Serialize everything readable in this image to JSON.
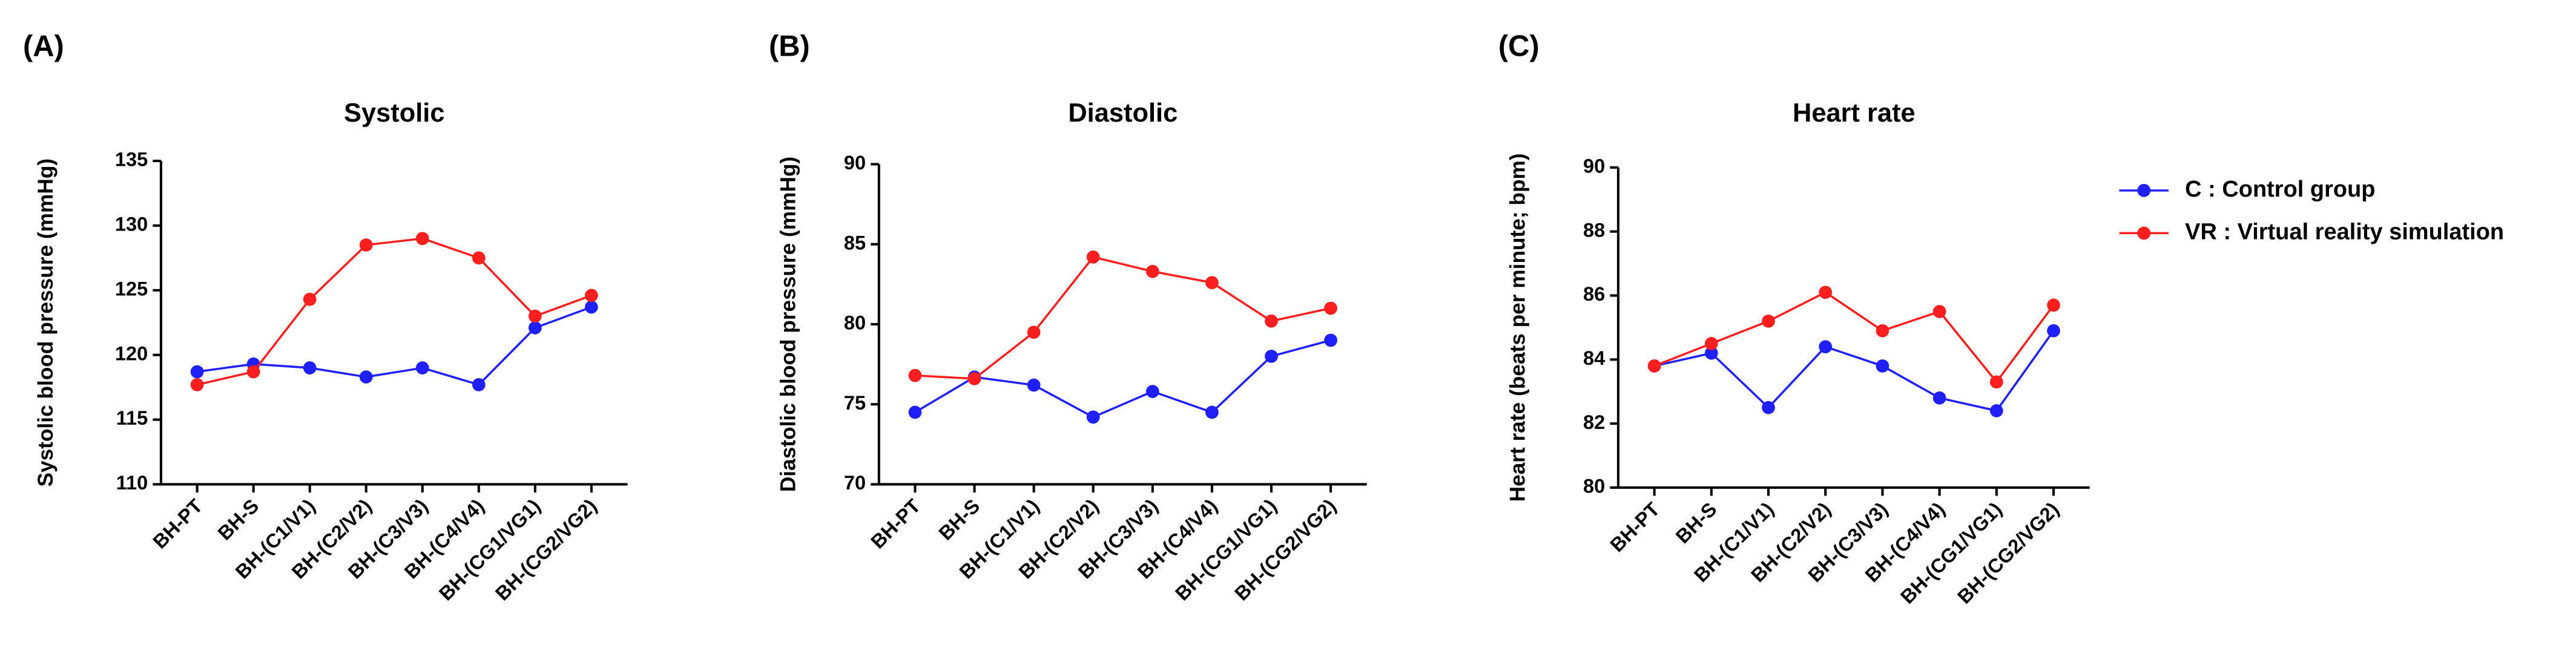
{
  "chart_data": [
    {
      "type": "line",
      "panel": "(A)",
      "title": "Systolic",
      "y_label": "Systolic blood pressure (mmHg)",
      "categories": [
        "BH-PT",
        "BH-S",
        "BH-(C1/V1)",
        "BH-(C2/V2)",
        "BH-(C3/V3)",
        "BH-(C4/V4)",
        "BH-(CG1/VG1)",
        "BH-(CG2/VG2)"
      ],
      "series": [
        {
          "color": "#1f1fff",
          "values": [
            118.7,
            119.3,
            119.0,
            118.3,
            119.0,
            117.7,
            122.1,
            123.7
          ]
        },
        {
          "color": "#ff1f1f",
          "values": [
            117.7,
            118.7,
            124.3,
            128.5,
            129.0,
            127.5,
            123.0,
            124.6
          ]
        }
      ],
      "ylim": [
        110,
        135
      ],
      "yticks": [
        110,
        115,
        120,
        125,
        130,
        135
      ]
    },
    {
      "type": "line",
      "panel": "(B)",
      "title": "Diastolic",
      "y_label": "Diastolic blood pressure (mmHg)",
      "categories": [
        "BH-PT",
        "BH-S",
        "BH-(C1/V1)",
        "BH-(C2/V2)",
        "BH-(C3/V3)",
        "BH-(C4/V4)",
        "BH-(CG1/VG1)",
        "BH-(CG2/VG2)"
      ],
      "series": [
        {
          "color": "#1f1fff",
          "values": [
            74.5,
            76.7,
            76.2,
            74.2,
            75.8,
            74.5,
            78.0,
            79.0
          ]
        },
        {
          "color": "#ff1f1f",
          "values": [
            76.8,
            76.6,
            79.5,
            84.2,
            83.3,
            82.6,
            80.2,
            81.0
          ]
        }
      ],
      "ylim": [
        70,
        90
      ],
      "yticks": [
        70,
        75,
        80,
        85,
        90
      ]
    },
    {
      "type": "line",
      "panel": "(C)",
      "title": "Heart rate",
      "y_label": "Heart rate (beats per minute; bpm)",
      "categories": [
        "BH-PT",
        "BH-S",
        "BH-(C1/V1)",
        "BH-(C2/V2)",
        "BH-(C3/V3)",
        "BH-(C4/V4)",
        "BH-(CG1/VG1)",
        "BH-(CG2/VG2)"
      ],
      "series": [
        {
          "name": "C : Control group",
          "color": "#1f1fff",
          "values": [
            83.8,
            84.2,
            82.5,
            84.4,
            83.8,
            82.8,
            82.4,
            84.9
          ]
        },
        {
          "name": "VR : Virtual reality simulation",
          "color": "#ff1f1f",
          "values": [
            83.8,
            84.5,
            85.2,
            86.1,
            84.9,
            85.5,
            83.3,
            85.7
          ]
        }
      ],
      "ylim": [
        80,
        90
      ],
      "yticks": [
        80,
        82,
        84,
        86,
        88,
        90
      ],
      "legend": "right"
    }
  ]
}
